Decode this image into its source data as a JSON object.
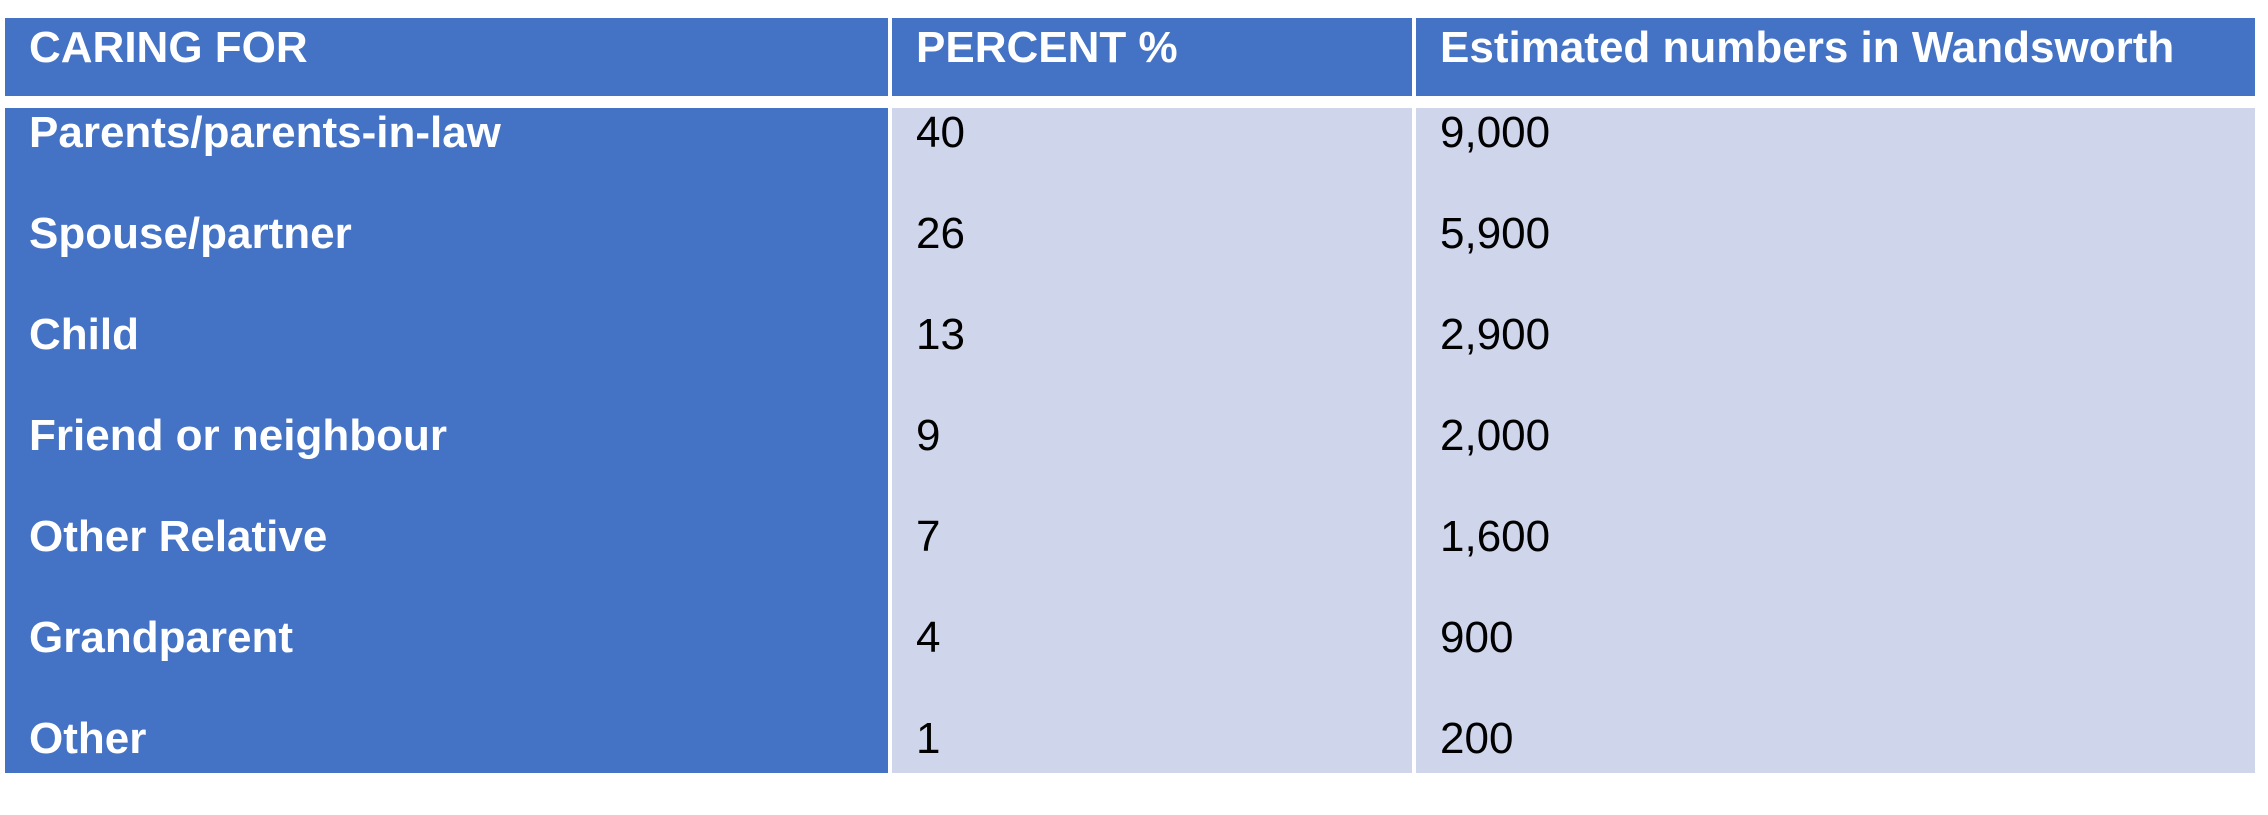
{
  "chart_data": {
    "type": "table",
    "columns": [
      "CARING FOR",
      "PERCENT %",
      "Estimated numbers in Wandsworth"
    ],
    "rows": [
      {
        "caring_for": "Parents/parents-in-law",
        "percent": "40",
        "estimate": "9,000"
      },
      {
        "caring_for": "Spouse/partner",
        "percent": "26",
        "estimate": "5,900"
      },
      {
        "caring_for": "Child",
        "percent": "13",
        "estimate": "2,900"
      },
      {
        "caring_for": "Friend or neighbour",
        "percent": "9",
        "estimate": "2,000"
      },
      {
        "caring_for": "Other Relative",
        "percent": "7",
        "estimate": "1,600"
      },
      {
        "caring_for": "Grandparent",
        "percent": "4",
        "estimate": "900"
      },
      {
        "caring_for": "Other",
        "percent": "1",
        "estimate": "200"
      }
    ],
    "colors": {
      "header_fill": "#4472c4",
      "label_column_fill": "#4472c4",
      "value_column_fill": "#cfd5ea",
      "header_text": "#ffffff",
      "label_text": "#ffffff",
      "value_text": "#000000"
    }
  }
}
